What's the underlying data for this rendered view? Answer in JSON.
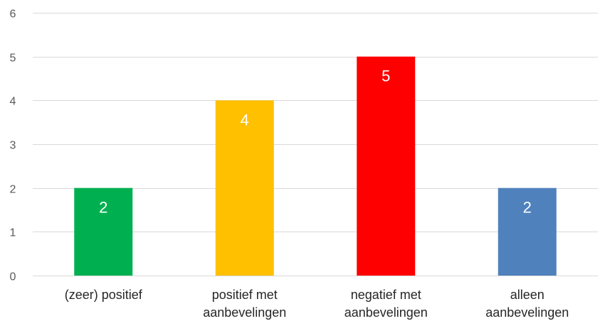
{
  "chart_data": {
    "type": "bar",
    "categories": [
      [
        "(zeer) positief"
      ],
      [
        "positief met",
        "aanbevelingen"
      ],
      [
        "negatief met",
        "aanbevelingen"
      ],
      [
        "alleen",
        "aanbevelingen"
      ]
    ],
    "values": [
      2,
      4,
      5,
      2
    ],
    "colors": [
      "#00b050",
      "#ffc000",
      "#ff0000",
      "#4f81bd"
    ],
    "title": "",
    "xlabel": "",
    "ylabel": "",
    "ylim": [
      0,
      6
    ],
    "yticks": [
      0,
      1,
      2,
      3,
      4,
      5,
      6
    ],
    "grid": true,
    "legend": "none"
  }
}
